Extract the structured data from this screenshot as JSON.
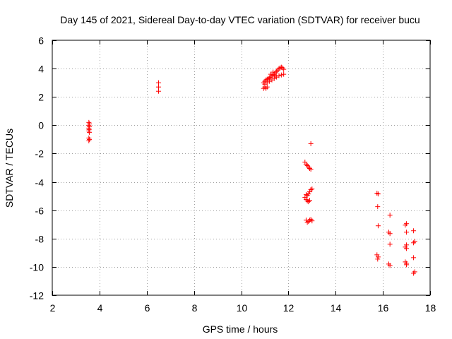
{
  "chart_data": {
    "type": "scatter",
    "title": "Day 145 of 2021, Sidereal Day-to-day VTEC variation (SDTVAR) for receiver bucu",
    "xlabel": "GPS time / hours",
    "ylabel": "SDTVAR / TECUs",
    "xlim": [
      2,
      18
    ],
    "ylim": [
      -12,
      6
    ],
    "xticks": [
      2,
      4,
      6,
      8,
      10,
      12,
      14,
      16,
      18
    ],
    "yticks": [
      -12,
      -10,
      -8,
      -6,
      -4,
      -2,
      0,
      2,
      4,
      6
    ],
    "grid": true,
    "marker": "+",
    "color": "#ff0000",
    "series": [
      {
        "name": "SDTVAR",
        "points": [
          [
            3.55,
            0.2
          ],
          [
            3.57,
            0.1
          ],
          [
            3.55,
            0.0
          ],
          [
            3.57,
            -0.1
          ],
          [
            3.55,
            -0.2
          ],
          [
            3.56,
            -0.3
          ],
          [
            3.55,
            -0.4
          ],
          [
            3.57,
            -0.5
          ],
          [
            3.55,
            -0.9
          ],
          [
            3.57,
            -1.0
          ],
          [
            3.55,
            -1.1
          ],
          [
            6.5,
            3.0
          ],
          [
            6.5,
            2.7
          ],
          [
            6.5,
            2.4
          ],
          [
            10.95,
            2.6
          ],
          [
            11.0,
            2.7
          ],
          [
            11.05,
            2.6
          ],
          [
            11.1,
            2.7
          ],
          [
            10.95,
            3.0
          ],
          [
            11.0,
            3.1
          ],
          [
            11.05,
            3.2
          ],
          [
            11.1,
            3.25
          ],
          [
            11.15,
            3.3
          ],
          [
            11.2,
            3.35
          ],
          [
            11.25,
            3.4
          ],
          [
            11.3,
            3.5
          ],
          [
            11.35,
            3.55
          ],
          [
            11.4,
            3.6
          ],
          [
            11.45,
            3.7
          ],
          [
            11.5,
            3.8
          ],
          [
            11.55,
            3.9
          ],
          [
            11.6,
            4.0
          ],
          [
            11.65,
            4.05
          ],
          [
            11.7,
            4.1
          ],
          [
            11.75,
            4.05
          ],
          [
            11.8,
            3.95
          ],
          [
            11.0,
            2.9
          ],
          [
            11.1,
            3.0
          ],
          [
            11.2,
            3.1
          ],
          [
            11.3,
            3.2
          ],
          [
            11.4,
            3.3
          ],
          [
            11.5,
            3.4
          ],
          [
            11.6,
            3.5
          ],
          [
            11.7,
            3.55
          ],
          [
            11.8,
            3.6
          ],
          [
            11.25,
            3.6
          ],
          [
            11.35,
            3.75
          ],
          [
            11.45,
            3.5
          ],
          [
            12.95,
            -1.3
          ],
          [
            12.7,
            -2.6
          ],
          [
            12.75,
            -2.75
          ],
          [
            12.8,
            -2.85
          ],
          [
            12.85,
            -2.95
          ],
          [
            12.9,
            -3.05
          ],
          [
            12.95,
            -3.1
          ],
          [
            12.75,
            -4.9
          ],
          [
            12.8,
            -4.95
          ],
          [
            12.85,
            -4.85
          ],
          [
            12.9,
            -4.7
          ],
          [
            12.95,
            -4.55
          ],
          [
            13.0,
            -4.5
          ],
          [
            12.7,
            -5.1
          ],
          [
            12.75,
            -5.25
          ],
          [
            12.8,
            -5.35
          ],
          [
            12.85,
            -5.4
          ],
          [
            12.9,
            -5.3
          ],
          [
            12.75,
            -6.7
          ],
          [
            12.8,
            -6.85
          ],
          [
            12.85,
            -6.8
          ],
          [
            12.9,
            -6.7
          ],
          [
            12.95,
            -6.65
          ],
          [
            13.0,
            -6.75
          ],
          [
            15.75,
            -4.8
          ],
          [
            15.8,
            -4.85
          ],
          [
            15.78,
            -5.75
          ],
          [
            15.8,
            -7.1
          ],
          [
            15.75,
            -9.15
          ],
          [
            15.8,
            -9.3
          ],
          [
            15.78,
            -9.45
          ],
          [
            16.3,
            -6.35
          ],
          [
            16.25,
            -7.55
          ],
          [
            16.3,
            -7.65
          ],
          [
            16.3,
            -8.4
          ],
          [
            16.25,
            -9.8
          ],
          [
            16.3,
            -9.9
          ],
          [
            17.0,
            -6.95
          ],
          [
            16.95,
            -7.05
          ],
          [
            17.0,
            -7.55
          ],
          [
            17.0,
            -8.45
          ],
          [
            16.95,
            -8.6
          ],
          [
            17.0,
            -8.7
          ],
          [
            16.95,
            -9.65
          ],
          [
            17.0,
            -9.75
          ],
          [
            17.0,
            -9.85
          ],
          [
            17.3,
            -7.45
          ],
          [
            17.35,
            -8.2
          ],
          [
            17.3,
            -8.3
          ],
          [
            17.3,
            -9.35
          ],
          [
            17.35,
            -10.35
          ],
          [
            17.3,
            -10.45
          ]
        ]
      }
    ]
  }
}
